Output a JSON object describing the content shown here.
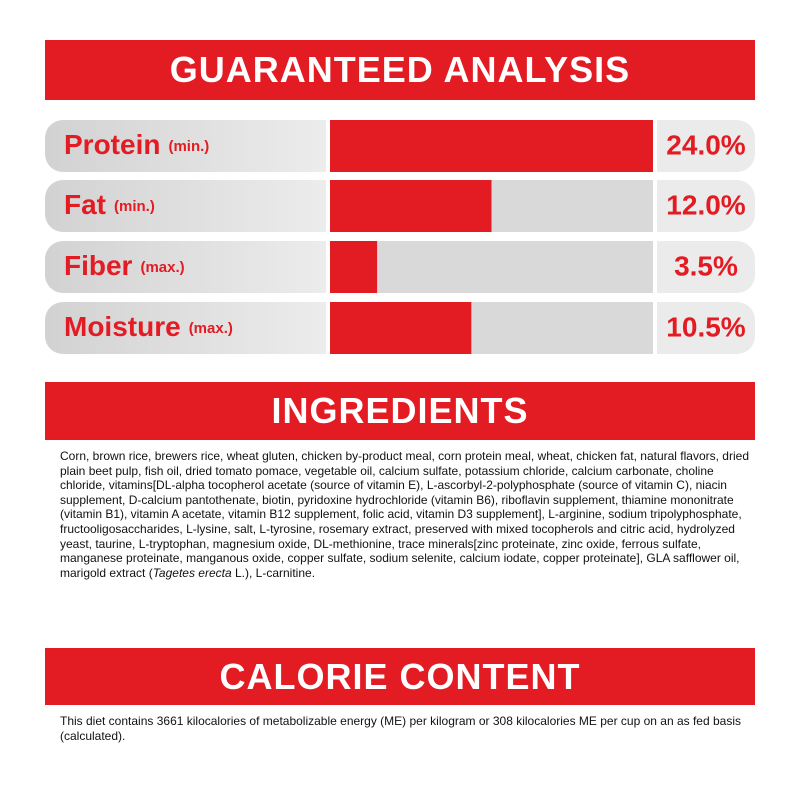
{
  "chart_data": {
    "type": "bar",
    "orientation": "horizontal",
    "title": "GUARANTEED ANALYSIS",
    "categories": [
      "Protein",
      "Fat",
      "Fiber",
      "Moisture"
    ],
    "qualifiers": [
      "(min.)",
      "(min.)",
      "(max.)",
      "(max.)"
    ],
    "values": [
      24.0,
      12.0,
      3.5,
      10.5
    ],
    "value_labels": [
      "24.0%",
      "12.0%",
      "3.5%",
      "10.5%"
    ],
    "color": "#e31b23"
  },
  "ingredients": {
    "title": "INGREDIENTS",
    "text_parts": [
      "Corn, brown rice, brewers rice, wheat gluten, chicken by-product meal, corn protein meal, wheat, chicken fat, natural flavors, dried plain beet pulp, fish oil, dried tomato pomace, vegetable oil, calcium sulfate, potassium chloride, calcium carbonate, choline chloride, vitamins[DL-alpha tocopherol acetate (source of vitamin E), L-ascorbyl-2-polyphosphate (source of vitamin C), niacin supplement, D-calcium pantothenate, biotin, pyridoxine hydrochloride (vitamin B6), riboflavin supplement, thiamine mononitrate (vitamin B1), vitamin A acetate, vitamin B12 supplement, folic acid, vitamin D3 supplement], L-arginine, sodium tripolyphosphate, fructooligosaccharides, L-lysine, salt, L-tyrosine, rosemary extract, preserved with mixed tocopherols and citric acid, hydrolyzed yeast, taurine, L-tryptophan, magnesium oxide, DL-methionine, trace minerals[zinc proteinate, zinc oxide, ferrous sulfate, manganese proteinate, manganous oxide, copper sulfate, sodium selenite, calcium iodate, copper proteinate], GLA safflower oil, marigold extract (",
      "Tagetes erecta",
      " L.), L-carnitine."
    ]
  },
  "calorie_content": {
    "title": "CALORIE CONTENT",
    "text": "This diet contains 3661 kilocalories of metabolizable energy (ME) per kilogram or 308 kilocalories ME per cup on an as fed basis (calculated)."
  }
}
